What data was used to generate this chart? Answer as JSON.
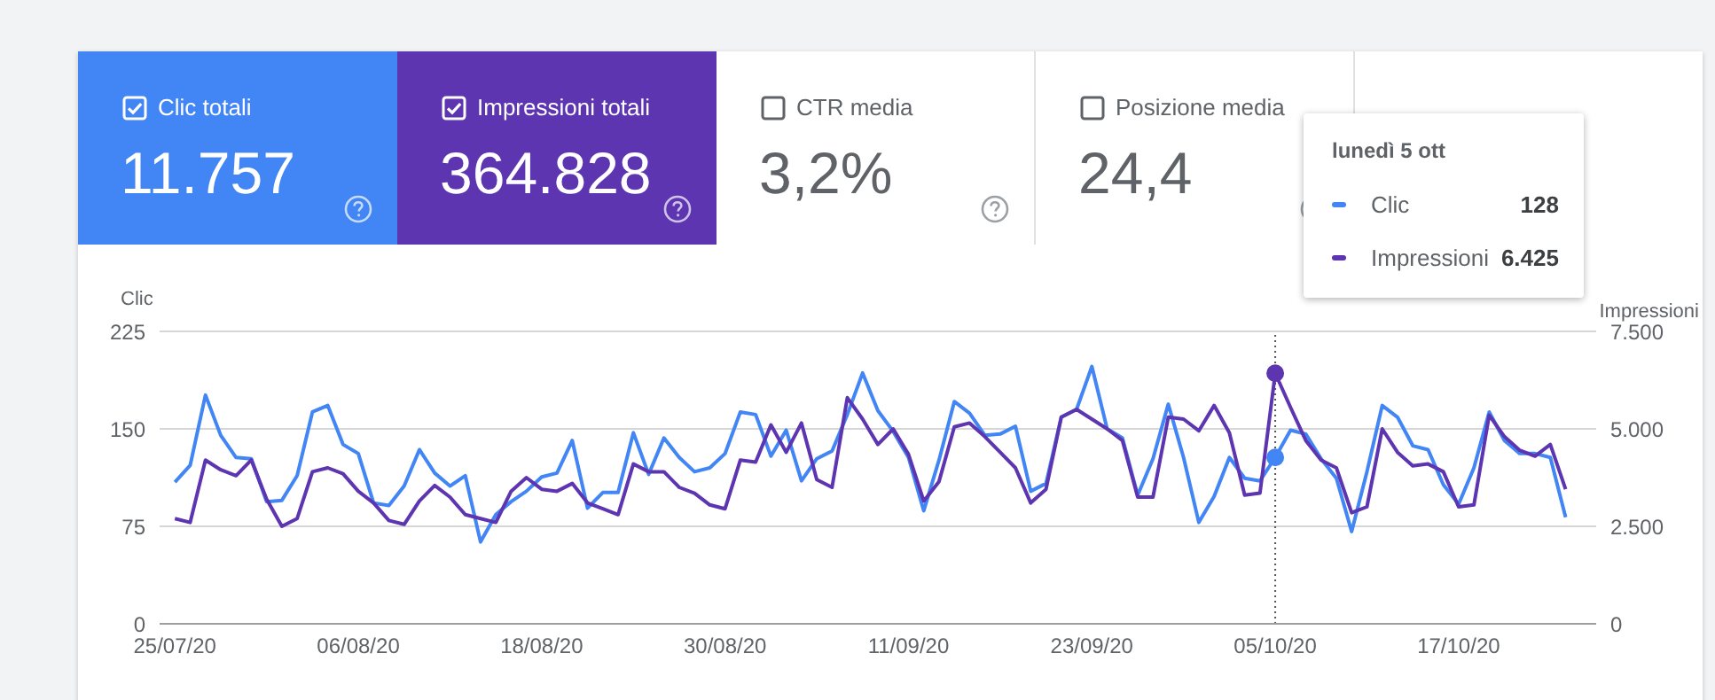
{
  "chart_data": [
    {
      "type": "other",
      "categories": [
        "Clic totali",
        "Impressioni totali",
        "CTR media",
        "Posizione media"
      ],
      "value_labels": [
        "11.757",
        "364.828",
        "3,2%",
        "24,4"
      ],
      "colors": [
        "#4285f4",
        "#5e35b1",
        "#ffffff",
        "#ffffff"
      ]
    },
    {
      "type": "line",
      "ylabel": "Clic",
      "y2label": "Impressioni",
      "legend_title": "lunedì 5 ott",
      "legend": "top right",
      "grid": "y",
      "x": [
        "--07-25",
        "--07-26",
        "--07-27",
        "--07-28",
        "--07-29",
        "--07-30",
        "--07-31",
        "--08-01",
        "--08-02",
        "--08-03",
        "--08-04",
        "--08-05",
        "--08-06",
        "--08-07",
        "--08-08",
        "--08-09",
        "--08-10",
        "--08-11",
        "--08-12",
        "--08-13",
        "--08-14",
        "--08-15",
        "--08-16",
        "--08-17",
        "--08-18",
        "--08-19",
        "--08-20",
        "--08-21",
        "--08-22",
        "--08-23",
        "--08-24",
        "--08-25",
        "--08-26",
        "--08-27",
        "--08-28",
        "--08-29",
        "--08-30",
        "--08-31",
        "--09-01",
        "--09-02",
        "--09-03",
        "--09-04",
        "--09-05",
        "--09-06",
        "--09-07",
        "--09-08",
        "--09-09",
        "--09-10",
        "--09-11",
        "--09-12",
        "--09-13",
        "--09-14",
        "--09-15",
        "--09-16",
        "--09-17",
        "--09-18",
        "--09-19",
        "--09-20",
        "--09-21",
        "--09-22",
        "--09-23",
        "--09-24",
        "--09-25",
        "--09-26",
        "--09-27",
        "--09-28",
        "--09-29",
        "--09-30",
        "--10-01",
        "--10-02",
        "--10-03",
        "--10-04",
        "--10-05",
        "--10-06",
        "--10-07",
        "--10-08",
        "--10-09",
        "--10-10",
        "--10-11",
        "--10-12",
        "--10-13",
        "--10-14",
        "--10-15",
        "--10-16",
        "--10-17",
        "--10-18",
        "--10-19",
        "--10-20",
        "--10-21",
        "--10-22",
        "--10-23",
        "--10-24"
      ],
      "series": [
        {
          "name": "Clic",
          "color": "#4285f4",
          "values": [
            109,
            122,
            176,
            145,
            128,
            127,
            94,
            95,
            114,
            163,
            168,
            138,
            131,
            93,
            91,
            106,
            134,
            116,
            106,
            114,
            63,
            84,
            94,
            102,
            113,
            116,
            141,
            89,
            101,
            101,
            147,
            115,
            143,
            128,
            117,
            120,
            131,
            163,
            161,
            129,
            149,
            110,
            127,
            133,
            161,
            193,
            164,
            148,
            128,
            87,
            126,
            171,
            162,
            145,
            146,
            152,
            102,
            108,
            159,
            165,
            198,
            150,
            143,
            99,
            127,
            169,
            128,
            78,
            98,
            128,
            112,
            110,
            128,
            149,
            146,
            127,
            112,
            71,
            117,
            168,
            159,
            137,
            134,
            107,
            92,
            120,
            163,
            141,
            131,
            131,
            128,
            82
          ]
        },
        {
          "name": "Impressioni",
          "color": "#5e35b1",
          "axis": "y2",
          "values": [
            2700,
            2600,
            4200,
            3950,
            3800,
            4200,
            3200,
            2500,
            2700,
            3900,
            4000,
            3850,
            3400,
            3100,
            2650,
            2550,
            3150,
            3550,
            3250,
            2800,
            2700,
            2600,
            3400,
            3750,
            3450,
            3400,
            3600,
            3100,
            2950,
            2800,
            4100,
            3900,
            3900,
            3500,
            3350,
            3050,
            2950,
            4200,
            4150,
            5100,
            4400,
            5150,
            3700,
            3500,
            5800,
            5250,
            4600,
            5000,
            4350,
            3150,
            3650,
            5050,
            5150,
            4800,
            4400,
            4000,
            3100,
            3450,
            5300,
            5500,
            5250,
            5000,
            4700,
            3250,
            3250,
            5300,
            5250,
            4950,
            5600,
            4900,
            3300,
            3350,
            6425,
            5550,
            4700,
            4200,
            4000,
            2850,
            3000,
            5000,
            4400,
            4050,
            4100,
            3900,
            3000,
            3050,
            5350,
            4800,
            4450,
            4300,
            4600,
            3450
          ]
        }
      ],
      "xlim": [
        "--07-24",
        "--10-26"
      ],
      "xticks": [
        {
          "value": "--07-25",
          "label": "25/07/20"
        },
        {
          "value": "--08-06",
          "label": "06/08/20"
        },
        {
          "value": "--08-18",
          "label": "18/08/20"
        },
        {
          "value": "--08-30",
          "label": "30/08/20"
        },
        {
          "value": "--09-11",
          "label": "11/09/20"
        },
        {
          "value": "--09-23",
          "label": "23/09/20"
        },
        {
          "value": "--10-05",
          "label": "05/10/20"
        },
        {
          "value": "--10-17",
          "label": "17/10/20"
        }
      ],
      "ylim": [
        0,
        225
      ],
      "yticks": [
        0,
        75,
        150,
        225
      ],
      "y2lim": [
        0,
        7500
      ],
      "y2ticks": [
        0,
        {
          "value": 2500,
          "label": "2.500"
        },
        {
          "value": 5000,
          "label": "5.000"
        },
        {
          "value": 7500,
          "label": "7.500"
        }
      ],
      "ref_lines": [
        {
          "axis": "x",
          "value": "--10-05",
          "line_style": "dotted",
          "color": "#555555"
        }
      ],
      "annotations": [
        "128",
        "6.425"
      ]
    }
  ]
}
